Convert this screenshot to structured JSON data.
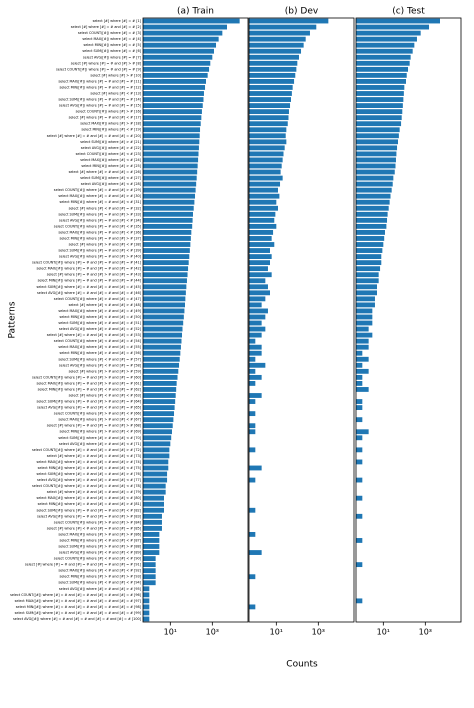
{
  "chart_data": {
    "type": "barh",
    "ylabel": "Patterns",
    "xlabel": "Counts",
    "log_x": true,
    "color": "#1f77b4",
    "xlim": [
      0.5,
      50000
    ],
    "xticks": [
      {
        "value": 10,
        "label": "10¹"
      },
      {
        "value": 1000,
        "label": "10³"
      }
    ],
    "categories": [
      "select [#] where [#] = # [1]",
      "select [#] where [#] = # and [#] = # [2]",
      "select COUNT([#]) where [#] = # [3]",
      "select MAX([#]) where [#] = # [4]",
      "select MIN([#]) where [#] = # [5]",
      "select SUM([#]) where [#] = # [6]",
      "select AVG([#]) where [#] = # [7]",
      "select [#] where [#] = # and [#] > # [8]",
      "select COUNT([#]) where [#] = # and [#] = # [9]",
      "select [#] where [#] > # [10]",
      "select MAX([#]) where [#] = # and [#] = # [11]",
      "select MIN([#]) where [#] = # and [#] = # [12]",
      "select [#] where [#] < # [13]",
      "select SUM([#]) where [#] = # and [#] = # [14]",
      "select AVG([#]) where [#] = # and [#] = # [15]",
      "select COUNT([#]) where [#] > # [16]",
      "select [#] where [#] = # and [#] < # [17]",
      "select MAX([#]) where [#] > # [18]",
      "select MIN([#]) where [#] < # [19]",
      "select [#] where [#] = # and [#] = # and [#] = # [20]",
      "select SUM([#]) where [#] > # [21]",
      "select AVG([#]) where [#] > # [22]",
      "select COUNT([#]) where [#] < # [23]",
      "select MAX([#]) where [#] < # [24]",
      "select MIN([#]) where [#] > # [25]",
      "select [#] where [#] > # and [#] = # [26]",
      "select SUM([#]) where [#] < # [27]",
      "select AVG([#]) where [#] < # [28]",
      "select COUNT([#]) where [#] = # and [#] > # [29]",
      "select MAX([#]) where [#] = # and [#] > # [30]",
      "select MIN([#]) where [#] = # and [#] < # [31]",
      "select [#] where [#] < # and [#] = # [32]",
      "select SUM([#]) where [#] = # and [#] > # [33]",
      "select AVG([#]) where [#] = # and [#] < # [34]",
      "select COUNT([#]) where [#] = # and [#] < # [35]",
      "select MAX([#]) where [#] = # and [#] < # [36]",
      "select MIN([#]) where [#] = # and [#] > # [37]",
      "select [#] where [#] > # and [#] < # [38]",
      "select SUM([#]) where [#] = # and [#] < # [39]",
      "select AVG([#]) where [#] = # and [#] > # [40]",
      "select COUNT([#]) where [#] = # and [#] = # and [#] = # [41]",
      "select MAX([#]) where [#] = # and [#] = # and [#] = # [42]",
      "select [#] where [#] = # and [#] > # and [#] = # [43]",
      "select MIN([#]) where [#] = # and [#] = # and [#] = # [44]",
      "select SUM([#]) where [#] = # and [#] = # and [#] = # [45]",
      "select AVG([#]) where [#] = # and [#] = # and [#] = # [46]",
      "select COUNT([#]) where [#] > # and [#] = # [47]",
      "select [#] where [#] < # and [#] > # [48]",
      "select MAX([#]) where [#] > # and [#] = # [49]",
      "select MIN([#]) where [#] < # and [#] = # [50]",
      "select SUM([#]) where [#] > # and [#] = # [51]",
      "select AVG([#]) where [#] > # and [#] = # [52]",
      "select [#] where [#] = # and [#] < # and [#] = # [53]",
      "select COUNT([#]) where [#] < # and [#] = # [54]",
      "select MAX([#]) where [#] < # and [#] = # [55]",
      "select MIN([#]) where [#] > # and [#] = # [56]",
      "select SUM([#]) where [#] < # and [#] = # [57]",
      "select AVG([#]) where [#] < # and [#] = # [58]",
      "select [#] where [#] > # and [#] > # [59]",
      "select COUNT([#]) where [#] = # and [#] > # and [#] = # [60]",
      "select MAX([#]) where [#] = # and [#] > # and [#] = # [61]",
      "select MIN([#]) where [#] = # and [#] < # and [#] = # [62]",
      "select [#] where [#] < # and [#] < # [63]",
      "select SUM([#]) where [#] = # and [#] > # and [#] = # [64]",
      "select AVG([#]) where [#] = # and [#] < # and [#] = # [65]",
      "select COUNT([#]) where [#] > # and [#] < # [66]",
      "select MAX([#]) where [#] > # and [#] < # [67]",
      "select [#] where [#] = # and [#] = # and [#] > # [68]",
      "select MIN([#]) where [#] > # and [#] < # [69]",
      "select SUM([#]) where [#] > # and [#] < # [70]",
      "select AVG([#]) where [#] > # and [#] < # [71]",
      "select COUNT([#]) where [#] = # and [#] = # and [#] > # [72]",
      "select [#] where [#] = # and [#] = # and [#] < # [73]",
      "select MAX([#]) where [#] = # and [#] = # and [#] > # [74]",
      "select MIN([#]) where [#] = # and [#] = # and [#] < # [75]",
      "select SUM([#]) where [#] = # and [#] = # and [#] > # [76]",
      "select AVG([#]) where [#] = # and [#] = # and [#] < # [77]",
      "select COUNT([#]) where [#] = # and [#] = # and [#] < # [78]",
      "select [#] where [#] > # and [#] = # and [#] = # [79]",
      "select MAX([#]) where [#] = # and [#] = # and [#] < # [80]",
      "select MIN([#]) where [#] = # and [#] = # and [#] > # [81]",
      "select SUM([#]) where [#] = # and [#] = # and [#] < # [82]",
      "select AVG([#]) where [#] = # and [#] = # and [#] > # [83]",
      "select COUNT([#]) where [#] > # and [#] > # [84]",
      "select [#] where [#] < # and [#] = # and [#] = # [85]",
      "select MAX([#]) where [#] > # and [#] > # [86]",
      "select MIN([#]) where [#] < # and [#] < # [87]",
      "select SUM([#]) where [#] > # and [#] > # [88]",
      "select AVG([#]) where [#] < # and [#] < # [89]",
      "select COUNT([#]) where [#] < # and [#] < # [90]",
      "select [#] where [#] = # and [#] = # and [#] = # and [#] = # [91]",
      "select MAX([#]) where [#] < # and [#] < # [92]",
      "select MIN([#]) where [#] > # and [#] > # [93]",
      "select SUM([#]) where [#] < # and [#] < # [94]",
      "select AVG([#]) where [#] > # and [#] > # [95]",
      "select COUNT([#]) where [#] = # and [#] = # and [#] = # and [#] = # [96]",
      "select MAX([#]) where [#] = # and [#] = # and [#] = # and [#] = # [97]",
      "select MIN([#]) where [#] = # and [#] = # and [#] = # and [#] = # [98]",
      "select SUM([#]) where [#] = # and [#] = # and [#] = # and [#] = # [99]",
      "select AVG([#]) where [#] = # and [#] = # and [#] = # and [#] = # [100]"
    ],
    "series": [
      {
        "name": "(a) Train",
        "values": [
          20000,
          5000,
          3000,
          2000,
          1500,
          1200,
          1000,
          800,
          700,
          600,
          500,
          450,
          400,
          380,
          350,
          320,
          300,
          280,
          260,
          250,
          240,
          230,
          220,
          210,
          200,
          190,
          180,
          170,
          160,
          150,
          140,
          130,
          120,
          115,
          110,
          100,
          95,
          90,
          85,
          80,
          75,
          70,
          66,
          62,
          58,
          55,
          52,
          50,
          47,
          44,
          41,
          38,
          36,
          34,
          32,
          30,
          28,
          26,
          24,
          22,
          20,
          19,
          18,
          17,
          16,
          15,
          14,
          13,
          12,
          11,
          10,
          9,
          9,
          8,
          8,
          7,
          7,
          6,
          6,
          5,
          5,
          5,
          4,
          4,
          4,
          3,
          3,
          3,
          3,
          2,
          2,
          2,
          2,
          2,
          1,
          1,
          1,
          1,
          1,
          1
        ]
      },
      {
        "name": "(b) Dev",
        "values": [
          3000,
          800,
          400,
          250,
          200,
          150,
          120,
          100,
          90,
          80,
          70,
          60,
          55,
          50,
          45,
          40,
          38,
          35,
          30,
          28,
          30,
          25,
          22,
          20,
          18,
          16,
          20,
          15,
          12,
          14,
          10,
          12,
          9,
          8,
          10,
          7,
          6,
          8,
          5,
          6,
          5,
          4,
          6,
          3,
          4,
          5,
          3,
          2,
          4,
          3,
          2,
          3,
          2,
          1,
          2,
          2,
          1,
          3,
          1,
          2,
          1,
          0,
          2,
          1,
          0,
          1,
          0,
          1,
          1,
          0,
          0,
          1,
          0,
          0,
          2,
          0,
          1,
          0,
          0,
          0,
          0,
          1,
          0,
          0,
          0,
          1,
          0,
          0,
          2,
          0,
          0,
          0,
          1,
          0,
          0,
          0,
          0,
          1,
          0,
          0
        ]
      },
      {
        "name": "(c) Test",
        "values": [
          5000,
          1500,
          600,
          400,
          300,
          250,
          200,
          180,
          150,
          130,
          120,
          100,
          95,
          90,
          85,
          80,
          75,
          70,
          60,
          55,
          50,
          45,
          42,
          40,
          38,
          35,
          30,
          28,
          25,
          22,
          20,
          18,
          16,
          15,
          14,
          12,
          11,
          10,
          9,
          8,
          8,
          7,
          6,
          6,
          5,
          5,
          4,
          4,
          3,
          3,
          3,
          2,
          3,
          2,
          2,
          1,
          2,
          1,
          2,
          1,
          1,
          2,
          0,
          1,
          1,
          0,
          1,
          0,
          2,
          1,
          0,
          1,
          0,
          1,
          0,
          0,
          1,
          0,
          0,
          1,
          0,
          0,
          1,
          0,
          0,
          0,
          1,
          0,
          0,
          0,
          1,
          0,
          0,
          0,
          0,
          0,
          1,
          0,
          0,
          0
        ]
      }
    ]
  }
}
